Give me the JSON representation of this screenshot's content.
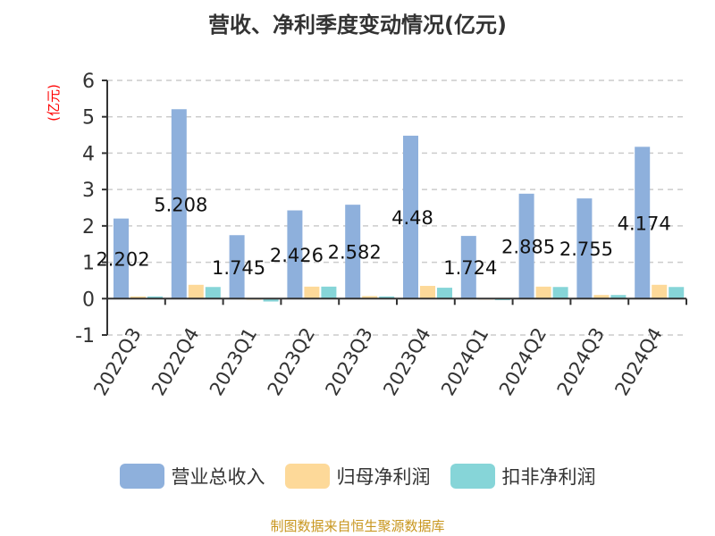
{
  "title": "营收、净利季度变动情况(亿元)",
  "source": "制图数据来自恒生聚源数据库",
  "chart_data": {
    "type": "bar",
    "title": "营收、净利季度变动情况(亿元)",
    "ylabel": "(亿元)",
    "ylim": [
      -1,
      6
    ],
    "yticks": [
      -1,
      0,
      1,
      2,
      3,
      4,
      5,
      6
    ],
    "grid": true,
    "legend_position": "bottom",
    "categories": [
      "2022Q3",
      "2022Q4",
      "2023Q1",
      "2023Q2",
      "2023Q3",
      "2023Q4",
      "2024Q1",
      "2024Q2",
      "2024Q3",
      "2024Q4"
    ],
    "series": [
      {
        "name": "营业总收入",
        "color": "#8eb0dc",
        "values": [
          2.202,
          5.208,
          1.745,
          2.426,
          2.582,
          4.48,
          1.724,
          2.885,
          2.755,
          4.174
        ],
        "labels": [
          "2.202",
          "5.208",
          "1.745",
          "2.426",
          "2.582",
          "4.48",
          "1.724",
          "2.885",
          "2.755",
          "4.174"
        ]
      },
      {
        "name": "归母净利润",
        "color": "#fdd999",
        "values": [
          0.06,
          0.38,
          -0.03,
          0.33,
          0.07,
          0.35,
          -0.02,
          0.33,
          0.1,
          0.38
        ]
      },
      {
        "name": "扣非净利润",
        "color": "#86d5d8",
        "values": [
          0.06,
          0.32,
          -0.08,
          0.33,
          0.06,
          0.3,
          -0.04,
          0.32,
          0.1,
          0.32
        ]
      }
    ]
  }
}
